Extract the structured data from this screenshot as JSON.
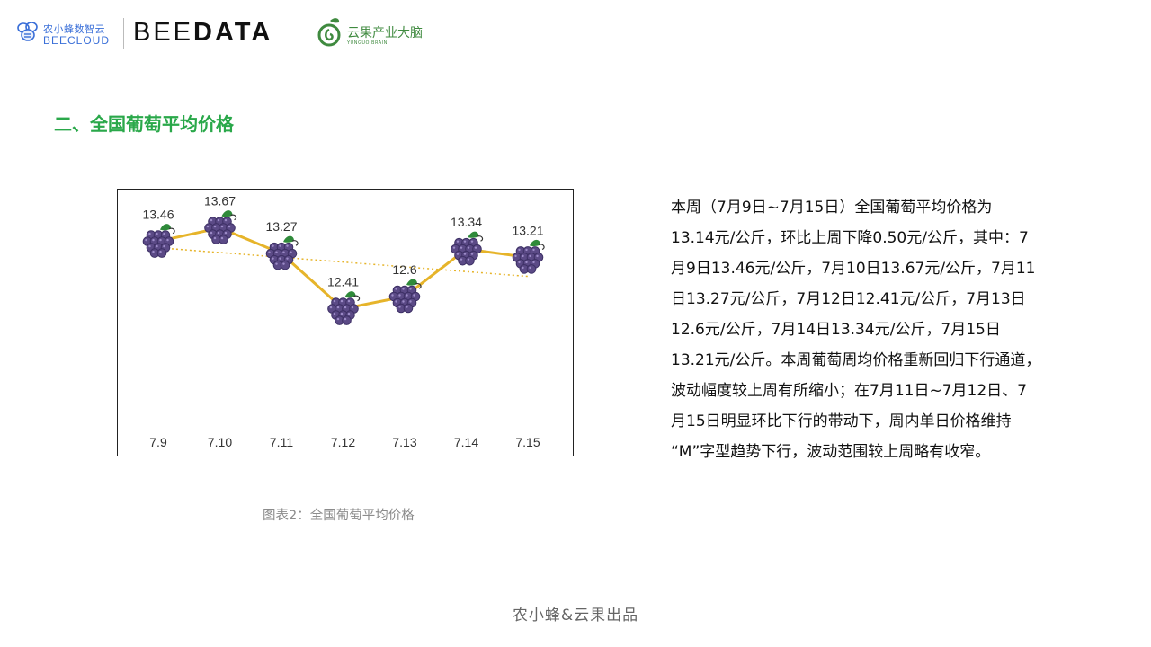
{
  "header": {
    "beecloud_cn": "农小蜂数智云",
    "beecloud_en": "BEECLOUD",
    "beedata_light": "BEE",
    "beedata_bold": "DATA",
    "yunguo_cn": "云果产业大脑",
    "yunguo_en": "YUNGUO BRAIN"
  },
  "section_title": "二、全国葡萄平均价格",
  "chart_data": {
    "type": "line",
    "categories": [
      "7.9",
      "7.10",
      "7.11",
      "7.12",
      "7.13",
      "7.14",
      "7.15"
    ],
    "values": [
      13.46,
      13.67,
      13.27,
      12.41,
      12.6,
      13.34,
      13.21
    ],
    "data_labels": [
      "13.46",
      "13.67",
      "13.27",
      "12.41",
      "12.6",
      "13.34",
      "13.21"
    ],
    "trendline": true,
    "marker": "grape-icon",
    "axes_visible": false,
    "grid": false,
    "ylim": [
      11.2,
      14.0
    ],
    "colors": {
      "line": "#e6b42a",
      "trend": "#e6b42a",
      "grape": "#5b4a86",
      "grape_dark": "#3d3065",
      "leaf": "#2f8a3a"
    }
  },
  "caption": "图表2：全国葡萄平均价格",
  "description": [
    "本周（7月9日~7月15日）全国葡萄平均价格为",
    "13.14元/公斤，环比上周下降0.50元/公斤，其中：7",
    "月9日13.46元/公斤，7月10日13.67元/公斤，7月11",
    "日13.27元/公斤，7月12日12.41元/公斤，7月13日",
    "12.6元/公斤，7月14日13.34元/公斤，7月15日",
    "13.21元/公斤。本周葡萄周均价格重新回归下行通道，",
    "波动幅度较上周有所缩小；在7月11日~7月12日、7",
    "月15日明显环比下行的带动下，周内单日价格维持",
    "“M”字型趋势下行，波动范围较上周略有收窄。"
  ],
  "footer": "农小蜂&云果出品"
}
